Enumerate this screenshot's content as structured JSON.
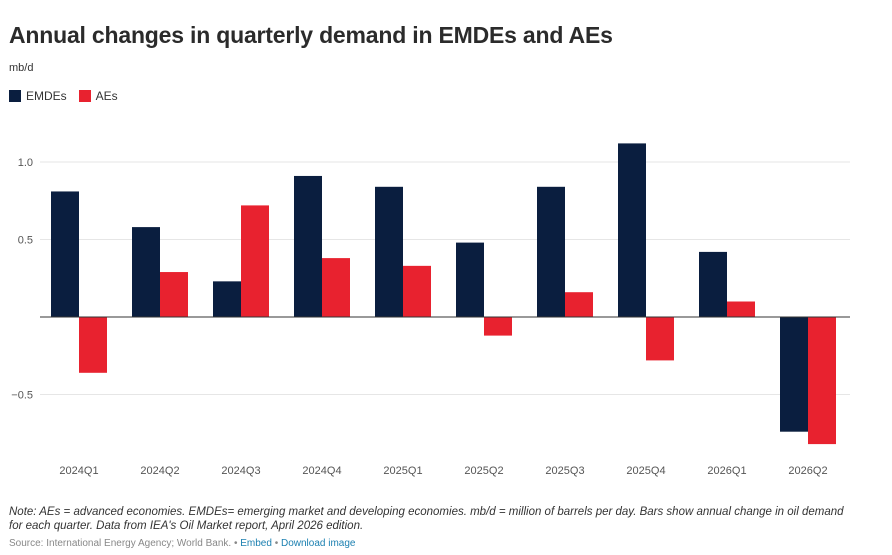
{
  "header": {
    "title": "Annual changes in quarterly demand in EMDEs and AEs",
    "unit": "mb/d"
  },
  "legend": {
    "items": [
      {
        "label": "EMDEs",
        "color": "#0a1e3f"
      },
      {
        "label": "AEs",
        "color": "#e8222f"
      }
    ]
  },
  "footer": {
    "note": "Note: AEs = advanced economies. EMDEs= emerging market and developing economies. mb/d = million of barrels per day. Bars show annual change in oil demand for each quarter. Data from IEA's Oil Market report, April 2026 edition.",
    "source": "Source: International Energy Agency; World Bank.",
    "bullet": " • ",
    "embed_label": "Embed",
    "download_label": "Download image"
  },
  "chart_data": {
    "type": "bar",
    "categories": [
      "2024Q1",
      "2024Q2",
      "2024Q3",
      "2024Q4",
      "2025Q1",
      "2025Q2",
      "2025Q3",
      "2025Q4",
      "2026Q1",
      "2026Q2"
    ],
    "series": [
      {
        "name": "EMDEs",
        "color": "#0a1e3f",
        "values": [
          0.81,
          0.58,
          0.23,
          0.91,
          0.84,
          0.48,
          0.84,
          1.12,
          0.42,
          -0.74
        ]
      },
      {
        "name": "AEs",
        "color": "#e8222f",
        "values": [
          -0.36,
          0.29,
          0.72,
          0.38,
          0.33,
          -0.12,
          0.16,
          -0.28,
          0.1,
          -0.82
        ]
      }
    ],
    "yticks": [
      -0.5,
      0.5,
      1.0
    ],
    "ytick_labels": [
      "−0.5",
      "0.5",
      "1.0"
    ],
    "ylim": [
      -0.87,
      1.17
    ],
    "ylabel": "mb/d",
    "grid": true,
    "legend_position": "top-left"
  }
}
